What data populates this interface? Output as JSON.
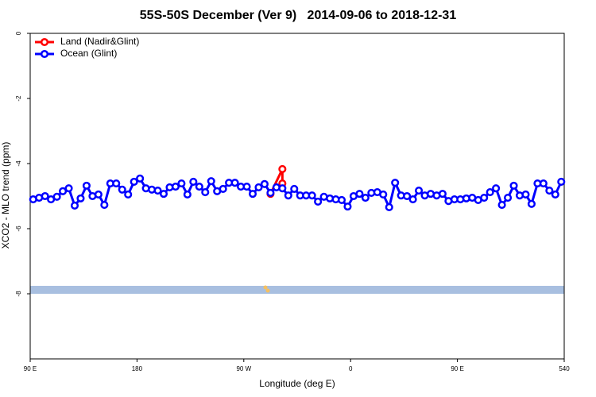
{
  "chart_data": {
    "type": "line",
    "title": "55S-50S December (Ver 9)   2014-09-06 to 2018-12-31",
    "xlabel": "Longitude (deg E)",
    "ylabel": "XCO2 - MLO trend (ppm)",
    "xlim": [
      90,
      540
    ],
    "xticks": [
      {
        "value": 90,
        "label": "90 E"
      },
      180,
      {
        "value": 270,
        "label": "90 W"
      },
      {
        "value": 360,
        "label": "0"
      },
      {
        "value": 450,
        "label": "90 E"
      },
      540
    ],
    "ylim": [
      -10,
      0
    ],
    "yticks": [
      0,
      -2,
      -4,
      -6,
      -8
    ],
    "legend": "top-left",
    "series": [
      {
        "name": "Land (Nadir&Glint)",
        "color": "#ff0000",
        "x": [
          292.5,
          302.5,
          302.5
        ],
        "values": [
          -4.93,
          -4.17,
          -4.61
        ]
      },
      {
        "name": "Ocean (Glint)",
        "color": "#0000ff",
        "x": [
          92.5,
          97.5,
          102.5,
          107.5,
          112.5,
          117.5,
          122.5,
          127.5,
          132.5,
          137.5,
          142.5,
          147.5,
          152.5,
          157.5,
          162.5,
          167.5,
          172.5,
          177.5,
          182.5,
          187.5,
          192.5,
          197.5,
          202.5,
          207.5,
          212.5,
          217.5,
          222.5,
          227.5,
          232.5,
          237.5,
          242.5,
          247.5,
          252.5,
          257.5,
          262.5,
          267.5,
          272.5,
          277.5,
          282.5,
          287.5,
          292.5,
          297.5,
          302.5,
          307.5,
          312.5,
          317.5,
          322.5,
          327.5,
          332.5,
          337.5,
          342.5,
          347.5,
          352.5,
          357.5,
          362.5,
          367.5,
          372.5,
          377.5,
          382.5,
          387.5,
          392.5,
          397.5,
          402.5,
          407.5,
          412.5,
          417.5,
          422.5,
          427.5,
          432.5,
          437.5,
          442.5,
          447.5,
          452.5,
          457.5,
          462.5,
          467.5,
          472.5,
          477.5,
          482.5,
          487.5,
          492.5,
          497.5,
          502.5,
          507.5,
          512.5,
          517.5,
          522.5,
          527.5,
          532.5,
          537.5
        ],
        "values": [
          -5.1,
          -5.05,
          -5.0,
          -5.1,
          -5.02,
          -4.85,
          -4.76,
          -5.29,
          -5.07,
          -4.68,
          -5.0,
          -4.95,
          -5.27,
          -4.61,
          -4.61,
          -4.8,
          -4.95,
          -4.56,
          -4.46,
          -4.76,
          -4.8,
          -4.83,
          -4.93,
          -4.73,
          -4.71,
          -4.61,
          -4.95,
          -4.56,
          -4.71,
          -4.88,
          -4.54,
          -4.85,
          -4.78,
          -4.59,
          -4.59,
          -4.71,
          -4.71,
          -4.93,
          -4.73,
          -4.63,
          -4.9,
          -4.73,
          -4.76,
          -4.98,
          -4.78,
          -4.98,
          -4.98,
          -4.98,
          -5.17,
          -5.02,
          -5.07,
          -5.1,
          -5.12,
          -5.32,
          -5.0,
          -4.93,
          -5.05,
          -4.9,
          -4.88,
          -4.95,
          -5.34,
          -4.59,
          -4.98,
          -5.0,
          -5.1,
          -4.83,
          -4.98,
          -4.93,
          -4.98,
          -4.93,
          -5.15,
          -5.1,
          -5.1,
          -5.07,
          -5.05,
          -5.12,
          -5.05,
          -4.88,
          -4.76,
          -5.27,
          -5.05,
          -4.68,
          -4.98,
          -4.95,
          -5.24,
          -4.61,
          -4.61,
          -4.83,
          -4.95,
          -4.56
        ]
      }
    ]
  }
}
